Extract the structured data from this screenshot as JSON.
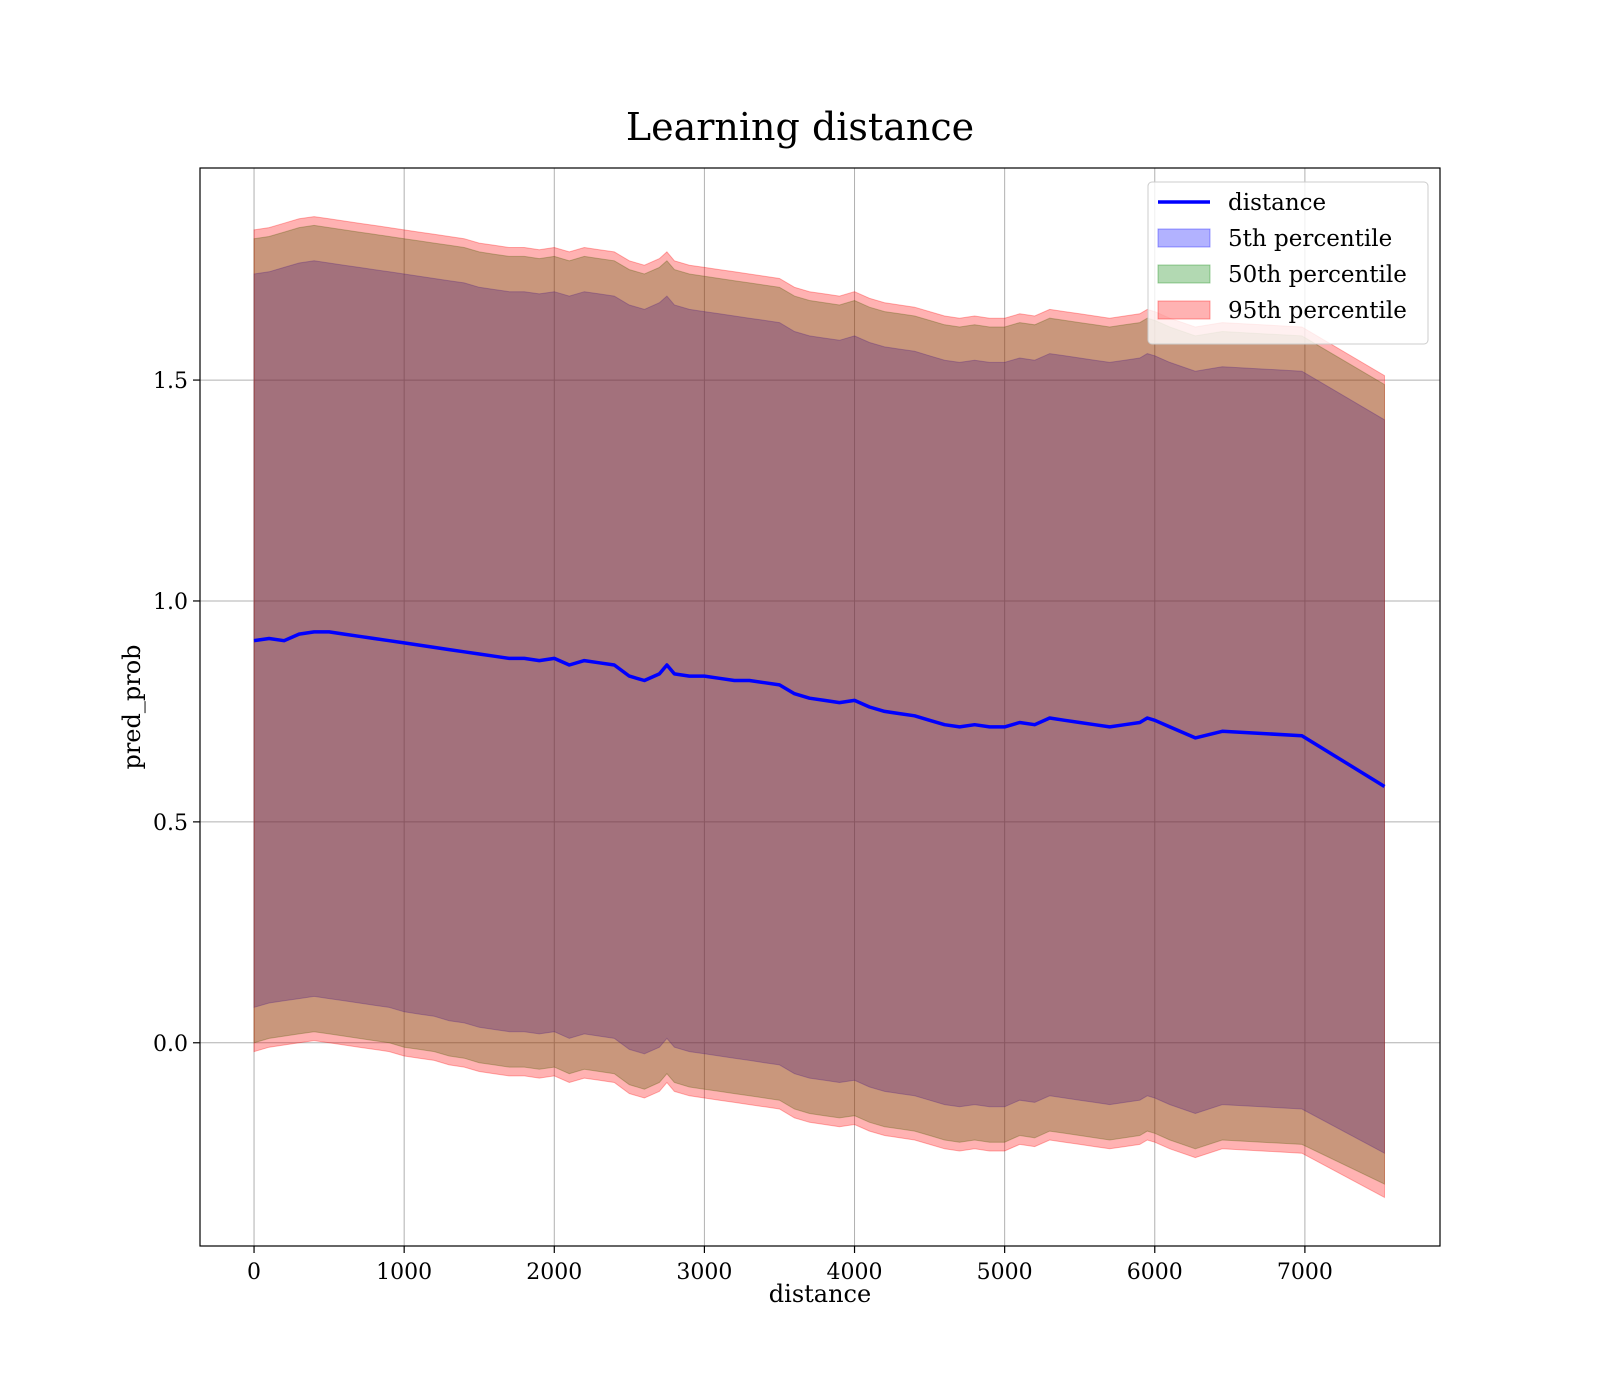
{
  "chart_data": {
    "type": "area",
    "title": "Learning distance",
    "xlabel": "distance",
    "ylabel": "pred_prob",
    "xlim": [
      -360,
      7900
    ],
    "ylim": [
      -0.46,
      1.98
    ],
    "x_ticks": [
      0,
      1000,
      2000,
      3000,
      4000,
      5000,
      6000,
      7000
    ],
    "x_tick_labels": [
      "0",
      "1000",
      "2000",
      "3000",
      "4000",
      "5000",
      "6000",
      "7000"
    ],
    "y_ticks": [
      0.0,
      0.5,
      1.0,
      1.5
    ],
    "y_tick_labels": [
      "0.0",
      "0.5",
      "1.0",
      "1.5"
    ],
    "grid": true,
    "legend_position": "top-right",
    "x": [
      0,
      100,
      200,
      300,
      400,
      500,
      600,
      700,
      800,
      900,
      1000,
      1100,
      1200,
      1300,
      1400,
      1500,
      1600,
      1700,
      1800,
      1900,
      2000,
      2100,
      2200,
      2300,
      2400,
      2500,
      2600,
      2700,
      2750,
      2800,
      2900,
      3000,
      3100,
      3200,
      3300,
      3400,
      3500,
      3600,
      3700,
      3800,
      3900,
      4000,
      4100,
      4200,
      4300,
      4400,
      4500,
      4600,
      4700,
      4800,
      4900,
      5000,
      5100,
      5200,
      5300,
      5400,
      5500,
      5600,
      5700,
      5800,
      5900,
      5950,
      6000,
      6100,
      6270,
      6450,
      6980,
      7530
    ],
    "series": [
      {
        "name": "distance",
        "kind": "line",
        "color": "#0000ff",
        "values": [
          0.91,
          0.915,
          0.91,
          0.925,
          0.93,
          0.93,
          0.925,
          0.92,
          0.915,
          0.91,
          0.905,
          0.9,
          0.895,
          0.89,
          0.885,
          0.88,
          0.875,
          0.87,
          0.87,
          0.865,
          0.87,
          0.855,
          0.865,
          0.86,
          0.855,
          0.83,
          0.82,
          0.835,
          0.855,
          0.835,
          0.83,
          0.83,
          0.825,
          0.82,
          0.82,
          0.815,
          0.81,
          0.79,
          0.78,
          0.775,
          0.77,
          0.775,
          0.76,
          0.75,
          0.745,
          0.74,
          0.73,
          0.72,
          0.715,
          0.72,
          0.715,
          0.715,
          0.725,
          0.72,
          0.735,
          0.73,
          0.725,
          0.72,
          0.715,
          0.72,
          0.725,
          0.735,
          0.73,
          0.715,
          0.69,
          0.705,
          0.695,
          0.58
        ]
      },
      {
        "name": "5th percentile",
        "kind": "band",
        "color": "#0000ff",
        "lower": [
          0.08,
          0.09,
          0.095,
          0.1,
          0.105,
          0.1,
          0.095,
          0.09,
          0.085,
          0.08,
          0.07,
          0.065,
          0.06,
          0.05,
          0.045,
          0.035,
          0.03,
          0.025,
          0.025,
          0.02,
          0.025,
          0.01,
          0.02,
          0.015,
          0.01,
          -0.015,
          -0.025,
          -0.01,
          0.01,
          -0.01,
          -0.02,
          -0.025,
          -0.03,
          -0.035,
          -0.04,
          -0.045,
          -0.05,
          -0.07,
          -0.08,
          -0.085,
          -0.09,
          -0.085,
          -0.1,
          -0.11,
          -0.115,
          -0.12,
          -0.13,
          -0.14,
          -0.145,
          -0.14,
          -0.145,
          -0.145,
          -0.13,
          -0.135,
          -0.12,
          -0.125,
          -0.13,
          -0.135,
          -0.14,
          -0.135,
          -0.13,
          -0.12,
          -0.125,
          -0.14,
          -0.16,
          -0.14,
          -0.15,
          -0.25
        ],
        "upper": [
          1.74,
          1.745,
          1.755,
          1.765,
          1.77,
          1.765,
          1.76,
          1.755,
          1.75,
          1.745,
          1.74,
          1.735,
          1.73,
          1.725,
          1.72,
          1.71,
          1.705,
          1.7,
          1.7,
          1.695,
          1.7,
          1.69,
          1.7,
          1.695,
          1.69,
          1.67,
          1.66,
          1.675,
          1.69,
          1.67,
          1.66,
          1.655,
          1.65,
          1.645,
          1.64,
          1.635,
          1.63,
          1.61,
          1.6,
          1.595,
          1.59,
          1.6,
          1.585,
          1.575,
          1.57,
          1.565,
          1.555,
          1.545,
          1.54,
          1.545,
          1.54,
          1.54,
          1.55,
          1.545,
          1.56,
          1.555,
          1.55,
          1.545,
          1.54,
          1.545,
          1.55,
          1.56,
          1.555,
          1.54,
          1.52,
          1.53,
          1.52,
          1.41
        ]
      },
      {
        "name": "50th percentile",
        "kind": "band",
        "color": "#008000",
        "lower": [
          0.0,
          0.01,
          0.015,
          0.02,
          0.025,
          0.02,
          0.015,
          0.01,
          0.005,
          0.0,
          -0.01,
          -0.015,
          -0.02,
          -0.03,
          -0.035,
          -0.045,
          -0.05,
          -0.055,
          -0.055,
          -0.06,
          -0.055,
          -0.07,
          -0.06,
          -0.065,
          -0.07,
          -0.095,
          -0.105,
          -0.09,
          -0.07,
          -0.09,
          -0.1,
          -0.105,
          -0.11,
          -0.115,
          -0.12,
          -0.125,
          -0.13,
          -0.15,
          -0.16,
          -0.165,
          -0.17,
          -0.165,
          -0.18,
          -0.19,
          -0.195,
          -0.2,
          -0.21,
          -0.22,
          -0.225,
          -0.22,
          -0.225,
          -0.225,
          -0.21,
          -0.215,
          -0.2,
          -0.205,
          -0.21,
          -0.215,
          -0.22,
          -0.215,
          -0.21,
          -0.2,
          -0.205,
          -0.22,
          -0.24,
          -0.22,
          -0.23,
          -0.32
        ],
        "upper": [
          1.82,
          1.825,
          1.835,
          1.845,
          1.85,
          1.845,
          1.84,
          1.835,
          1.83,
          1.825,
          1.82,
          1.815,
          1.81,
          1.805,
          1.8,
          1.79,
          1.785,
          1.78,
          1.78,
          1.775,
          1.78,
          1.77,
          1.78,
          1.775,
          1.77,
          1.75,
          1.74,
          1.755,
          1.77,
          1.75,
          1.74,
          1.735,
          1.73,
          1.725,
          1.72,
          1.715,
          1.71,
          1.69,
          1.68,
          1.675,
          1.67,
          1.68,
          1.665,
          1.655,
          1.65,
          1.645,
          1.635,
          1.625,
          1.62,
          1.625,
          1.62,
          1.62,
          1.63,
          1.625,
          1.64,
          1.635,
          1.63,
          1.625,
          1.62,
          1.625,
          1.63,
          1.64,
          1.635,
          1.62,
          1.6,
          1.61,
          1.6,
          1.49
        ]
      },
      {
        "name": "95th percentile",
        "kind": "band",
        "color": "#ff0000",
        "lower": [
          -0.02,
          -0.01,
          -0.005,
          0.0,
          0.005,
          0.0,
          -0.005,
          -0.01,
          -0.015,
          -0.02,
          -0.03,
          -0.035,
          -0.04,
          -0.05,
          -0.055,
          -0.065,
          -0.07,
          -0.075,
          -0.075,
          -0.08,
          -0.075,
          -0.09,
          -0.08,
          -0.085,
          -0.09,
          -0.115,
          -0.125,
          -0.11,
          -0.09,
          -0.11,
          -0.12,
          -0.125,
          -0.13,
          -0.135,
          -0.14,
          -0.145,
          -0.15,
          -0.17,
          -0.18,
          -0.185,
          -0.19,
          -0.185,
          -0.2,
          -0.21,
          -0.215,
          -0.22,
          -0.23,
          -0.24,
          -0.245,
          -0.24,
          -0.245,
          -0.245,
          -0.23,
          -0.235,
          -0.22,
          -0.225,
          -0.23,
          -0.235,
          -0.24,
          -0.235,
          -0.23,
          -0.22,
          -0.225,
          -0.24,
          -0.26,
          -0.24,
          -0.25,
          -0.35
        ],
        "upper": [
          1.84,
          1.845,
          1.855,
          1.865,
          1.87,
          1.865,
          1.86,
          1.855,
          1.85,
          1.845,
          1.84,
          1.835,
          1.83,
          1.825,
          1.82,
          1.81,
          1.805,
          1.8,
          1.8,
          1.795,
          1.8,
          1.79,
          1.8,
          1.795,
          1.79,
          1.77,
          1.76,
          1.775,
          1.79,
          1.77,
          1.76,
          1.755,
          1.75,
          1.745,
          1.74,
          1.735,
          1.73,
          1.71,
          1.7,
          1.695,
          1.69,
          1.7,
          1.685,
          1.675,
          1.67,
          1.665,
          1.655,
          1.645,
          1.64,
          1.645,
          1.64,
          1.64,
          1.65,
          1.645,
          1.66,
          1.655,
          1.65,
          1.645,
          1.64,
          1.645,
          1.65,
          1.66,
          1.655,
          1.64,
          1.62,
          1.63,
          1.62,
          1.51
        ]
      }
    ]
  }
}
